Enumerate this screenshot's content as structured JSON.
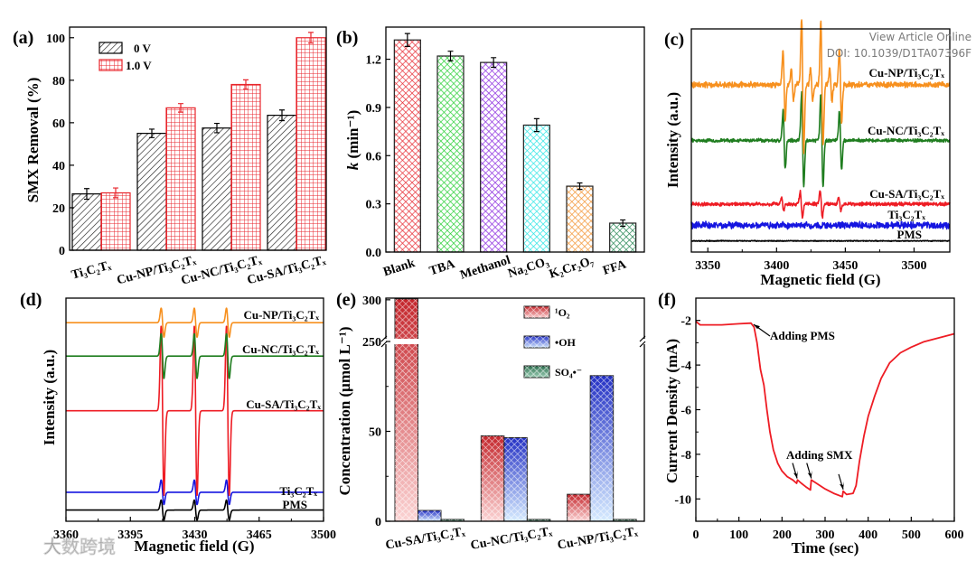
{
  "watermark": {
    "view_article": "View Article Online",
    "doi": "DOI: 10.1039/D1TA07396F",
    "logo": "大数跨境"
  },
  "chart_data": [
    {
      "panel": "(a)",
      "type": "bar",
      "title": "",
      "xlabel": "",
      "ylabel": "SMX Removal (%)",
      "ylim": [
        0,
        105
      ],
      "yticks": [
        "0",
        "20",
        "40",
        "60",
        "80",
        "100"
      ],
      "categories": [
        "Ti₃C₂Tₓ",
        "Cu-NP/Ti₃C₂Tₓ",
        "Cu-NC/Ti₃C₂Tₓ",
        "Cu-SA/Ti₃C₂Tₓ"
      ],
      "series": [
        {
          "name": "0 V",
          "values": [
            26.5,
            55,
            57.5,
            63.5
          ],
          "errors": [
            2.5,
            2,
            2.2,
            2.5
          ],
          "color": "#000000",
          "pattern": "hatch"
        },
        {
          "name": "1.0 V",
          "values": [
            27,
            67,
            78,
            100
          ],
          "errors": [
            2.3,
            2,
            2.2,
            2.5
          ],
          "color": "#e8262c",
          "pattern": "grid"
        }
      ],
      "legend": "top-left"
    },
    {
      "panel": "(b)",
      "type": "bar",
      "xlabel": "",
      "ylabel_k": "k",
      "ylabel_rest": " (min⁻¹)",
      "ylim": [
        0,
        1.4
      ],
      "yticks": [
        "0.0",
        "0.3",
        "0.6",
        "0.9",
        "1.2"
      ],
      "categories": [
        "Blank",
        "TBA",
        "Methanol",
        "Na₂CO₃",
        "K₂Cr₂O₇",
        "FFA"
      ],
      "values": [
        1.32,
        1.22,
        1.18,
        0.79,
        0.41,
        0.18
      ],
      "errors": [
        0.04,
        0.03,
        0.03,
        0.04,
        0.02,
        0.02
      ],
      "colors": [
        "#e8323a",
        "#2fd13c",
        "#8e2fe0",
        "#33e6e6",
        "#f3983a",
        "#2e8b5a"
      ]
    },
    {
      "panel": "(c)",
      "type": "line",
      "xlabel": "Magnetic field (G)",
      "ylabel": "Intensity (a.u.)",
      "xlim": [
        3338,
        3526
      ],
      "ylim": [
        0,
        10
      ],
      "xticks": [
        "3350",
        "3400",
        "3450",
        "3500"
      ],
      "series": [
        {
          "name": "Cu-NP/Ti₃C₂Tₓ",
          "color": "#f7901e",
          "offset": 7.5,
          "noise": 0.18,
          "peaks": [
            [
              3405.5,
              1.6
            ],
            [
              3411.5,
              0.7
            ],
            [
              3419,
              3.0
            ],
            [
              3425.5,
              0.7
            ],
            [
              3433,
              2.8
            ],
            [
              3439.5,
              0.7
            ],
            [
              3446.5,
              1.6
            ]
          ]
        },
        {
          "name": "Cu-NC/Ti₃C₂Tₓ",
          "color": "#1f7d1f",
          "offset": 5.0,
          "noise": 0.12,
          "peaks": [
            [
              3405.5,
              1.3
            ],
            [
              3419,
              2.1
            ],
            [
              3433,
              2.1
            ],
            [
              3446.5,
              1.3
            ]
          ]
        },
        {
          "name": "Cu-SA/Ti₃C₂Tₓ",
          "color": "#ee1c24",
          "offset": 2.15,
          "noise": 0.12,
          "peaks": [
            [
              3404.5,
              0.3
            ],
            [
              3418,
              0.6
            ],
            [
              3432.5,
              0.6
            ],
            [
              3446,
              0.3
            ]
          ]
        },
        {
          "name": "Ti₃C₂Tₓ",
          "color": "#1515e0",
          "offset": 1.2,
          "noise": 0.22,
          "peaks": []
        },
        {
          "name": "PMS",
          "color": "#000000",
          "offset": 0.5,
          "noise": 0.03,
          "peaks": []
        }
      ]
    },
    {
      "panel": "(d)",
      "type": "line",
      "xlabel": "Magnetic field (G)",
      "ylabel": "Intensity (a.u.)",
      "xlim": [
        3360,
        3500
      ],
      "ylim": [
        0,
        10
      ],
      "xticks": [
        "3360",
        "3395",
        "3430",
        "3465",
        "3500"
      ],
      "series": [
        {
          "name": "Cu-NP/Ti₃C₂Tₓ",
          "color": "#f7901e",
          "offset": 8.9,
          "noise": 0,
          "peaks": [
            [
              3412.5,
              0.65
            ],
            [
              3430.5,
              0.65
            ],
            [
              3448,
              0.65
            ]
          ]
        },
        {
          "name": "Cu-NC/Ti₃C₂Tₓ",
          "color": "#1f7d1f",
          "offset": 7.4,
          "noise": 0,
          "peaks": [
            [
              3412.5,
              1.0
            ],
            [
              3430.5,
              1.0
            ],
            [
              3448,
              1.0
            ]
          ]
        },
        {
          "name": "Cu-SA/Ti₃C₂Tₓ",
          "color": "#ee1c24",
          "offset": 4.95,
          "noise": 0,
          "peaks": [
            [
              3412.5,
              3.8
            ],
            [
              3430.5,
              3.8
            ],
            [
              3448,
              3.8
            ]
          ]
        },
        {
          "name": "Ti₃C₂Tₓ",
          "color": "#1515e0",
          "offset": 1.3,
          "noise": 0,
          "peaks": [
            [
              3412.5,
              0.55
            ],
            [
              3430.5,
              0.55
            ],
            [
              3448,
              0.55
            ]
          ]
        },
        {
          "name": "PMS",
          "color": "#000000",
          "offset": 0.5,
          "noise": 0,
          "peaks": [
            [
              3412.5,
              0.45
            ],
            [
              3430.5,
              0.45
            ],
            [
              3448,
              0.45
            ]
          ]
        }
      ]
    },
    {
      "panel": "(e)",
      "type": "bar",
      "xlabel": "",
      "ylabel": "Concentration (μmol L⁻¹)",
      "ylim_lower": [
        0,
        100
      ],
      "ylim_upper": [
        250,
        302
      ],
      "axis_break": [
        100,
        250
      ],
      "yticks": [
        "0",
        "50",
        "250",
        "300"
      ],
      "categories": [
        "Cu-SA/Ti₃C₂Tₓ",
        "Cu-NC/Ti₃C₂Tₓ",
        "Cu-NP/Ti₃C₂Tₓ"
      ],
      "series": [
        {
          "name": "¹O₂",
          "values": [
            301,
            47.5,
            15
          ],
          "color": "#c4262c",
          "light": "#fbd3d3"
        },
        {
          "name": "•OH",
          "values": [
            6,
            46.5,
            81
          ],
          "color": "#2330c4",
          "light": "#d6ebff"
        },
        {
          "name": "SO₄•⁻",
          "values": [
            1,
            1,
            1
          ],
          "color": "#2c6e4e",
          "light": "#9fd1b8"
        }
      ],
      "legend": "top-right"
    },
    {
      "panel": "(f)",
      "type": "line",
      "xlabel": "Time (sec)",
      "ylabel": "Current Density (mA)",
      "xlim": [
        0,
        600
      ],
      "ylim": [
        -11,
        -1
      ],
      "xticks": [
        "0",
        "100",
        "200",
        "300",
        "400",
        "500",
        "600"
      ],
      "yticks": [
        "-2",
        "-4",
        "-6",
        "-8",
        "-10"
      ],
      "series": [
        {
          "name": "current",
          "color": "#ee1c24",
          "x": [
            0,
            10,
            30,
            60,
            100,
            128,
            135,
            142,
            150,
            158,
            165,
            172,
            180,
            190,
            200,
            212,
            225,
            234,
            236,
            245,
            255,
            266,
            268,
            280,
            300,
            320,
            340,
            342,
            350,
            365,
            372,
            380,
            390,
            400,
            415,
            430,
            450,
            475,
            500,
            530,
            560,
            600
          ],
          "y": [
            -2.05,
            -2.2,
            -2.2,
            -2.2,
            -2.15,
            -2.12,
            -2.3,
            -3.0,
            -4.2,
            -4.9,
            -6.0,
            -7.0,
            -7.8,
            -8.4,
            -8.75,
            -9.0,
            -9.15,
            -9.3,
            -9.15,
            -9.3,
            -9.45,
            -9.6,
            -9.15,
            -9.3,
            -9.55,
            -9.75,
            -9.9,
            -9.65,
            -9.8,
            -9.75,
            -9.4,
            -8.3,
            -7.2,
            -6.3,
            -5.4,
            -4.6,
            -3.9,
            -3.45,
            -3.2,
            -2.95,
            -2.8,
            -2.6
          ]
        }
      ],
      "annotations": [
        {
          "text": "Adding PMS",
          "x": 130,
          "y": -2.1
        },
        {
          "text": "Adding SMX",
          "points": [
            [
              235,
              -9.2
            ],
            [
              268,
              -9.2
            ],
            [
              342,
              -9.7
            ]
          ]
        }
      ]
    }
  ]
}
